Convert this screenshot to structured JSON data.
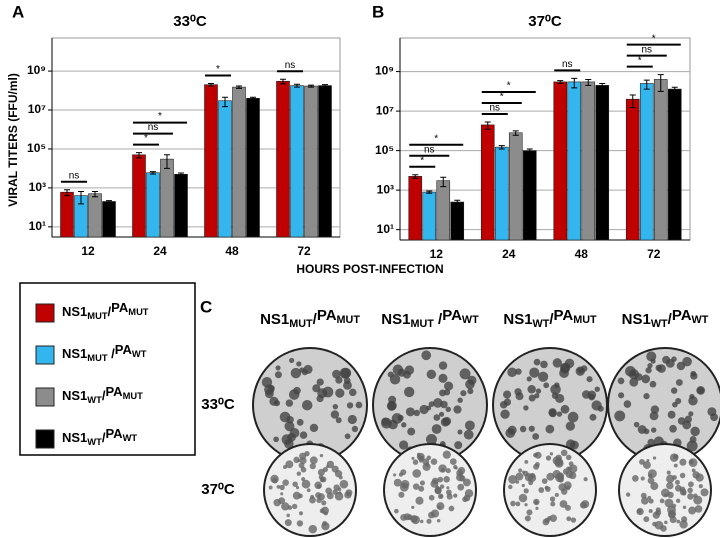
{
  "chart_data": [
    {
      "type": "bar",
      "panel_label": "A",
      "title": "33⁰C",
      "categories": [
        "12",
        "24",
        "48",
        "72"
      ],
      "series": [
        {
          "name": "NS1MUT/PAMUT",
          "color": "#c00000",
          "values": [
            600,
            50000,
            200000000,
            300000000
          ],
          "errors": [
            200,
            15000,
            30000000,
            80000000
          ]
        },
        {
          "name": "NS1MUT /PAWT",
          "color": "#33b5ee",
          "values": [
            400,
            6000,
            30000000,
            180000000
          ],
          "errors": [
            250,
            800,
            15000000,
            30000000
          ]
        },
        {
          "name": "NS1WT/PAMUT",
          "color": "#8c8c8c",
          "values": [
            500,
            30000,
            150000000,
            170000000
          ],
          "errors": [
            150,
            20000,
            20000000,
            20000000
          ]
        },
        {
          "name": "NS1WT/PAWT",
          "color": "#000000",
          "values": [
            200,
            5000,
            40000000,
            180000000
          ],
          "errors": [
            20,
            800,
            5000000,
            20000000
          ]
        }
      ],
      "annotations": [
        [
          "ns"
        ],
        [
          "*",
          "ns",
          "*"
        ],
        [
          "*"
        ],
        [
          "ns"
        ]
      ],
      "log_scale": true,
      "grid": true,
      "ylim": [
        3,
        50000000000
      ],
      "yticks": [
        {
          "value": 10,
          "label": "10¹"
        },
        {
          "value": 1000,
          "label": "10³"
        },
        {
          "value": 100000,
          "label": "10⁵"
        },
        {
          "value": 10000000,
          "label": "10⁷"
        },
        {
          "value": 1000000000,
          "label": "10⁹"
        }
      ]
    },
    {
      "type": "bar",
      "panel_label": "B",
      "title": "37⁰C",
      "categories": [
        "12",
        "24",
        "48",
        "72"
      ],
      "series": [
        {
          "name": "NS1MUT/PAMUT",
          "color": "#c00000",
          "values": [
            5000,
            2000000,
            300000000,
            40000000
          ],
          "errors": [
            1000,
            800000,
            50000000,
            25000000
          ]
        },
        {
          "name": "NS1MUT /PAWT",
          "color": "#33b5ee",
          "values": [
            800,
            150000,
            300000000,
            250000000
          ],
          "errors": [
            100,
            30000,
            150000000,
            120000000
          ]
        },
        {
          "name": "NS1WT/PAMUT",
          "color": "#8c8c8c",
          "values": [
            3000,
            800000,
            300000000,
            400000000
          ],
          "errors": [
            1500,
            200000,
            100000000,
            300000000
          ]
        },
        {
          "name": "NS1WT/PAWT",
          "color": "#000000",
          "values": [
            250,
            100000,
            200000000,
            130000000
          ],
          "errors": [
            60,
            20000,
            50000000,
            30000000
          ]
        }
      ],
      "annotations": [
        [
          "*",
          "ns",
          "*"
        ],
        [
          "ns",
          "*",
          "*"
        ],
        [
          "ns"
        ],
        [
          "*",
          "ns",
          "*"
        ]
      ],
      "log_scale": true,
      "grid": true,
      "ylim": [
        3,
        50000000000
      ],
      "yticks": [
        {
          "value": 10,
          "label": "10¹"
        },
        {
          "value": 1000,
          "label": "10³"
        },
        {
          "value": 100000,
          "label": "10⁵"
        },
        {
          "value": 10000000,
          "label": "10⁷"
        },
        {
          "value": 1000000000,
          "label": "10⁹"
        }
      ]
    }
  ],
  "axis_labels": {
    "y": "VIRAL TITERS (FFU/ml)",
    "x": "HOURS POST-INFECTION"
  },
  "panel_c": {
    "label": "C",
    "columns": [
      "NS1MUT/PAMUT",
      "NS1MUT /PAWT",
      "NS1WT/PAMUT",
      "NS1WT/PAWT"
    ],
    "rows": [
      "33⁰C",
      "37⁰C"
    ]
  }
}
